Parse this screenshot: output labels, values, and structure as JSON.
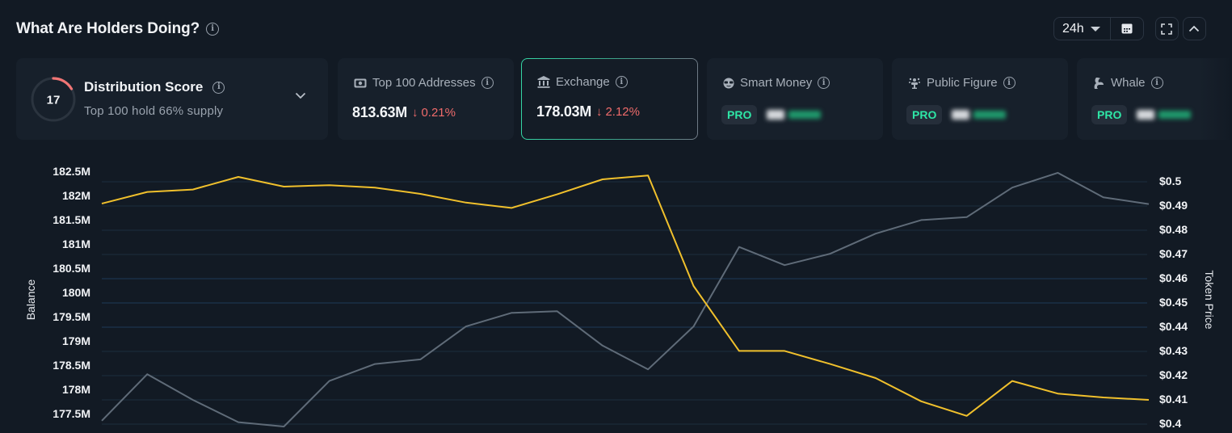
{
  "header": {
    "title": "What Are Holders Doing?",
    "info_icon": "info-icon"
  },
  "controls": {
    "time_range": "24h",
    "calendar_icon": "calendar-icon",
    "fullscreen_icon": "expand-icon",
    "collapse_icon": "chevron-up-icon"
  },
  "cards": {
    "distribution": {
      "score": "17",
      "score_max": 100,
      "title": "Distribution Score",
      "subtitle": "Top 100 hold 66% supply",
      "gauge_color": "#f07575"
    },
    "top100": {
      "icon": "money-icon",
      "label": "Top 100 Addresses",
      "value": "813.63M",
      "change": "0.21%",
      "direction": "down"
    },
    "exchange": {
      "icon": "bank-icon",
      "label": "Exchange",
      "value": "178.03M",
      "change": "2.12%",
      "direction": "down",
      "selected": true
    },
    "smart_money": {
      "icon": "sunglasses-face-icon",
      "label": "Smart Money",
      "badge": "PRO"
    },
    "public_figure": {
      "icon": "podium-icon",
      "label": "Public Figure",
      "badge": "PRO"
    },
    "whale": {
      "icon": "whale-icon",
      "label": "Whale",
      "badge": "PRO"
    }
  },
  "colors": {
    "balance_line": "#f0c02c",
    "price_line": "#5f6b78",
    "negative": "#ef6b6b",
    "pro_badge": "#2ee6a6",
    "selected_border": "#35d6a5"
  },
  "chart_data": {
    "type": "line",
    "title": "What Are Holders Doing? - Exchange",
    "xlabel": "",
    "ylabel": "Balance",
    "y2label": "Token Price",
    "ylim": [
      177.5,
      182.5
    ],
    "y2lim": [
      0.4,
      0.5
    ],
    "grid": true,
    "left_ticks": [
      "182.5M",
      "182M",
      "181.5M",
      "181M",
      "180.5M",
      "180M",
      "179.5M",
      "179M",
      "178.5M",
      "178M",
      "177.5M"
    ],
    "right_ticks": [
      "$0.5",
      "$0.49",
      "$0.48",
      "$0.47",
      "$0.46",
      "$0.45",
      "$0.44",
      "$0.43",
      "$0.42",
      "$0.41",
      "$0.4"
    ],
    "x": [
      0,
      1,
      2,
      3,
      4,
      5,
      6,
      7,
      8,
      9,
      10,
      11,
      12,
      13,
      14,
      15,
      16,
      17,
      18,
      19,
      20,
      21,
      22,
      23
    ],
    "series": [
      {
        "name": "Balance",
        "axis": "left",
        "unit": "M",
        "color": "#f0c02c",
        "values": [
          182.05,
          182.29,
          182.34,
          182.6,
          182.4,
          182.43,
          182.38,
          182.25,
          182.07,
          181.96,
          182.24,
          182.55,
          182.63,
          180.35,
          179.01,
          179.01,
          178.74,
          178.45,
          177.97,
          177.67,
          178.39,
          178.13,
          178.05,
          178.0
        ]
      },
      {
        "name": "Token Price",
        "axis": "right",
        "unit": "$",
        "color": "#5f6b78",
        "values": [
          0.4014,
          0.4206,
          0.41,
          0.4008,
          0.399,
          0.4178,
          0.4248,
          0.4267,
          0.4403,
          0.4459,
          0.4466,
          0.4324,
          0.4226,
          0.4403,
          0.4731,
          0.4656,
          0.4703,
          0.4786,
          0.4842,
          0.4854,
          0.4976,
          0.5037,
          0.4936,
          0.4908
        ]
      }
    ]
  }
}
